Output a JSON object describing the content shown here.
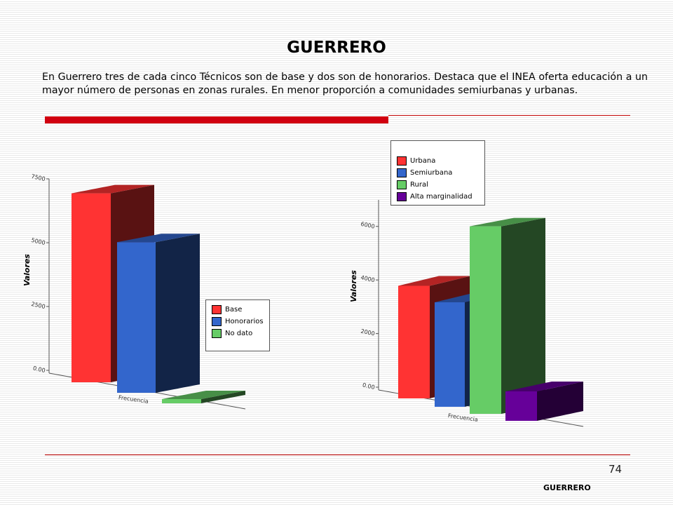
{
  "header": {
    "title": "GUERRERO",
    "intro": "En Guerrero tres de cada cinco Técnicos son de base y dos son de honorarios. Destaca que el INEA oferta educación a un mayor número de personas en zonas rurales. En menor proporción a comunidades semiurbanas y urbanas."
  },
  "footer": {
    "page_number": "74",
    "label": "GUERRERO"
  },
  "colors": {
    "accent_red": "#d10010"
  },
  "chart_data": [
    {
      "type": "bar",
      "style": "3d",
      "title": "",
      "xlabel": "",
      "ylabel": "Valores",
      "categories": [
        "Frecuencia"
      ],
      "ylim": [
        0,
        8000
      ],
      "yticks": [
        "0.00",
        "2500",
        "5000",
        "7500"
      ],
      "ytick_values": [
        0,
        2500,
        5000,
        7500
      ],
      "series": [
        {
          "name": "Base",
          "values": [
            7400
          ],
          "color": "#ff3333"
        },
        {
          "name": "Honorarios",
          "values": [
            5900
          ],
          "color": "#3366cc"
        },
        {
          "name": "No dato",
          "values": [
            120
          ],
          "color": "#66cc66"
        }
      ],
      "legend": "right"
    },
    {
      "type": "bar",
      "style": "3d",
      "title": "",
      "xlabel": "",
      "ylabel": "Valores",
      "categories": [
        "Frecuencia"
      ],
      "ylim": [
        0,
        7000
      ],
      "yticks": [
        "0.00",
        "2000",
        "4000",
        "6000"
      ],
      "ytick_values": [
        0,
        2000,
        4000,
        6000
      ],
      "series": [
        {
          "name": "Urbana",
          "values": [
            4200
          ],
          "color": "#ff3333"
        },
        {
          "name": "Semiurbana",
          "values": [
            3900
          ],
          "color": "#3366cc"
        },
        {
          "name": "Rural",
          "values": [
            7000
          ],
          "color": "#66cc66"
        },
        {
          "name": "Alta marginalidad",
          "values": [
            1100
          ],
          "color": "#660099"
        }
      ],
      "legend": "top"
    }
  ]
}
